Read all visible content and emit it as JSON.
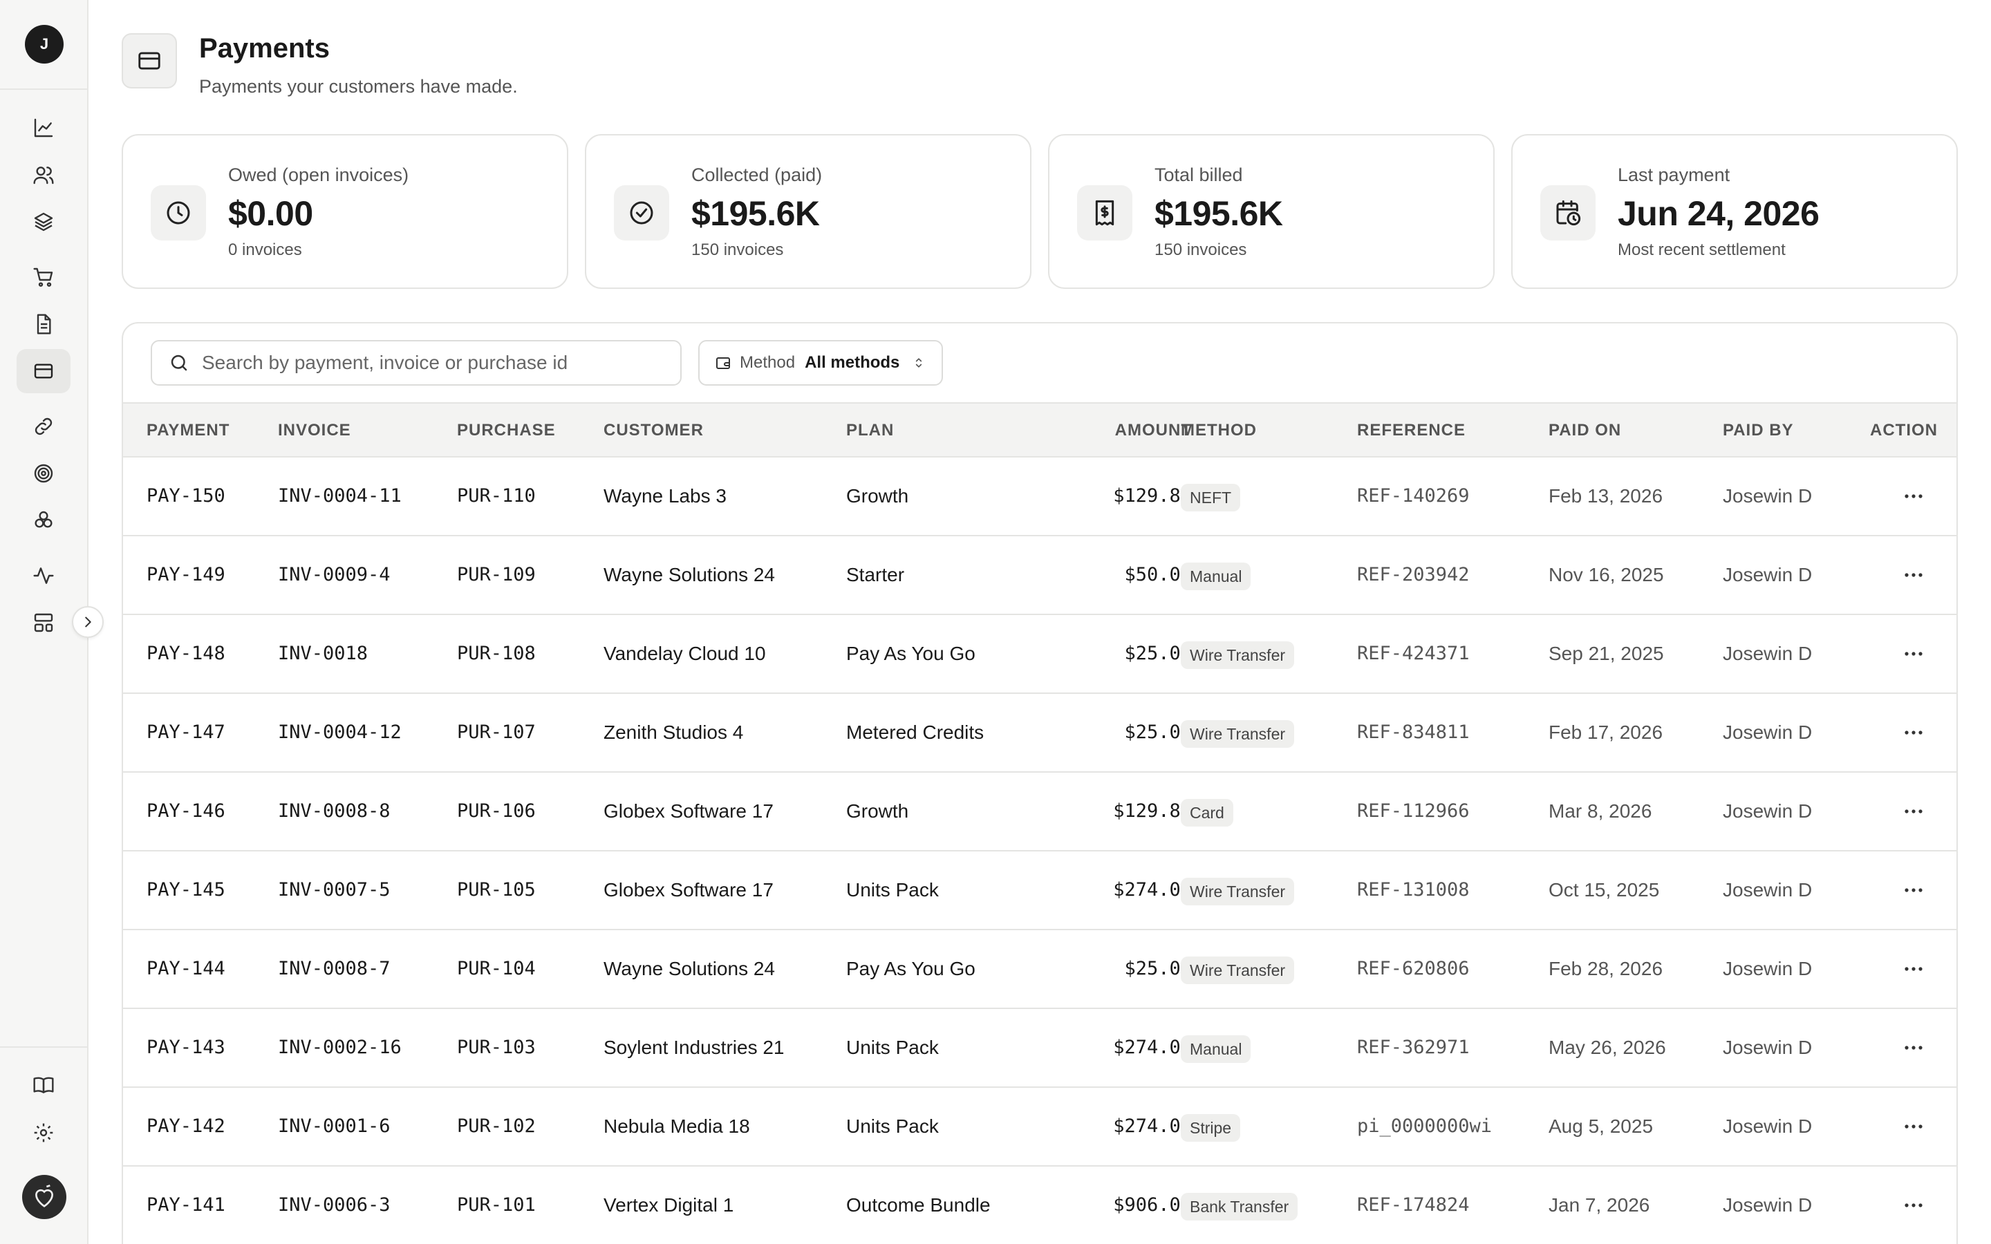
{
  "sidebar": {
    "user_initial": "J",
    "items": [
      {
        "icon": "chart-line-icon"
      },
      {
        "icon": "users-icon"
      },
      {
        "icon": "layers-icon"
      },
      {
        "icon": "cart-icon"
      },
      {
        "icon": "document-icon"
      },
      {
        "icon": "credit-card-icon",
        "active": true
      },
      {
        "icon": "link-icon"
      },
      {
        "icon": "target-icon"
      },
      {
        "icon": "component-icon"
      },
      {
        "icon": "activity-icon"
      },
      {
        "icon": "layout-icon"
      }
    ],
    "bottom": [
      {
        "icon": "book-icon"
      },
      {
        "icon": "gear-icon"
      }
    ]
  },
  "header": {
    "title": "Payments",
    "subtitle": "Payments your customers have made."
  },
  "stats": [
    {
      "label": "Owed (open invoices)",
      "value": "$0.00",
      "foot": "0 invoices",
      "icon": "clock-icon"
    },
    {
      "label": "Collected (paid)",
      "value": "$195.6K",
      "foot": "150 invoices",
      "icon": "check-circle-icon"
    },
    {
      "label": "Total billed",
      "value": "$195.6K",
      "foot": "150 invoices",
      "icon": "receipt-icon"
    },
    {
      "label": "Last payment",
      "value": "Jun 24, 2026",
      "foot": "Most recent settlement",
      "icon": "calendar-clock-icon"
    }
  ],
  "filters": {
    "search_placeholder": "Search by payment, invoice or purchase id",
    "method_label": "Method",
    "method_value": "All methods"
  },
  "table": {
    "columns": [
      "PAYMENT",
      "INVOICE",
      "PURCHASE",
      "CUSTOMER",
      "PLAN",
      "AMOUNT",
      "METHOD",
      "REFERENCE",
      "PAID ON",
      "PAID BY",
      "ACTION"
    ],
    "rows": [
      {
        "payment": "PAY-150",
        "invoice": "INV-0004-11",
        "purchase": "PUR-110",
        "customer": "Wayne Labs 3",
        "plan": "Growth",
        "amount": "$129.80",
        "method": "NEFT",
        "reference": "REF-140269",
        "paid_on": "Feb 13, 2026",
        "paid_by": "Josewin D"
      },
      {
        "payment": "PAY-149",
        "invoice": "INV-0009-4",
        "purchase": "PUR-109",
        "customer": "Wayne Solutions 24",
        "plan": "Starter",
        "amount": "$50.00",
        "method": "Manual",
        "reference": "REF-203942",
        "paid_on": "Nov 16, 2025",
        "paid_by": "Josewin D"
      },
      {
        "payment": "PAY-148",
        "invoice": "INV-0018",
        "purchase": "PUR-108",
        "customer": "Vandelay Cloud 10",
        "plan": "Pay As You Go",
        "amount": "$25.00",
        "method": "Wire Transfer",
        "reference": "REF-424371",
        "paid_on": "Sep 21, 2025",
        "paid_by": "Josewin D"
      },
      {
        "payment": "PAY-147",
        "invoice": "INV-0004-12",
        "purchase": "PUR-107",
        "customer": "Zenith Studios 4",
        "plan": "Metered Credits",
        "amount": "$25.00",
        "method": "Wire Transfer",
        "reference": "REF-834811",
        "paid_on": "Feb 17, 2026",
        "paid_by": "Josewin D"
      },
      {
        "payment": "PAY-146",
        "invoice": "INV-0008-8",
        "purchase": "PUR-106",
        "customer": "Globex Software 17",
        "plan": "Growth",
        "amount": "$129.80",
        "method": "Card",
        "reference": "REF-112966",
        "paid_on": "Mar 8, 2026",
        "paid_by": "Josewin D"
      },
      {
        "payment": "PAY-145",
        "invoice": "INV-0007-5",
        "purchase": "PUR-105",
        "customer": "Globex Software 17",
        "plan": "Units Pack",
        "amount": "$274.00",
        "method": "Wire Transfer",
        "reference": "REF-131008",
        "paid_on": "Oct 15, 2025",
        "paid_by": "Josewin D"
      },
      {
        "payment": "PAY-144",
        "invoice": "INV-0008-7",
        "purchase": "PUR-104",
        "customer": "Wayne Solutions 24",
        "plan": "Pay As You Go",
        "amount": "$25.00",
        "method": "Wire Transfer",
        "reference": "REF-620806",
        "paid_on": "Feb 28, 2026",
        "paid_by": "Josewin D"
      },
      {
        "payment": "PAY-143",
        "invoice": "INV-0002-16",
        "purchase": "PUR-103",
        "customer": "Soylent Industries 21",
        "plan": "Units Pack",
        "amount": "$274.00",
        "method": "Manual",
        "reference": "REF-362971",
        "paid_on": "May 26, 2026",
        "paid_by": "Josewin D"
      },
      {
        "payment": "PAY-142",
        "invoice": "INV-0001-6",
        "purchase": "PUR-102",
        "customer": "Nebula Media 18",
        "plan": "Units Pack",
        "amount": "$274.00",
        "method": "Stripe",
        "reference": "pi_0000000wi",
        "paid_on": "Aug 5, 2025",
        "paid_by": "Josewin D"
      },
      {
        "payment": "PAY-141",
        "invoice": "INV-0006-3",
        "purchase": "PUR-101",
        "customer": "Vertex Digital 1",
        "plan": "Outcome Bundle",
        "amount": "$906.00",
        "method": "Bank Transfer",
        "reference": "REF-174824",
        "paid_on": "Jan 7, 2026",
        "paid_by": "Josewin D"
      }
    ]
  }
}
